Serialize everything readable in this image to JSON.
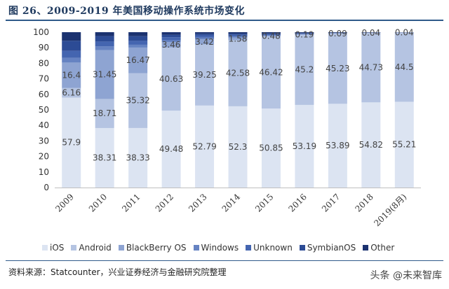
{
  "figure_title": "图 26、2009-2019 年美国移动操作系统市场变化",
  "source_note": "资料来源：Statcounter，兴业证券经济与金融研究院整理",
  "watermark": "头条 @未来智库",
  "chart_data": {
    "type": "bar",
    "stacked": true,
    "categories": [
      "2009",
      "2010",
      "2011",
      "2012",
      "2013",
      "2014",
      "2015",
      "2016",
      "2017",
      "2018",
      "2019(8月)"
    ],
    "ylim": [
      0,
      100
    ],
    "yticks": [
      0,
      10,
      20,
      30,
      40,
      50,
      60,
      70,
      80,
      90,
      100
    ],
    "grid": false,
    "legend_position": "bottom",
    "series": [
      {
        "name": "iOS",
        "color": "#dce4f2",
        "values": [
          57.9,
          38.31,
          38.33,
          49.48,
          52.79,
          52.3,
          50.85,
          53.19,
          53.89,
          54.82,
          55.21
        ],
        "labels": [
          "57.9",
          "38.31",
          "38.33",
          "49.48",
          "52.79",
          "52.3",
          "50.85",
          "53.19",
          "53.89",
          "54.82",
          "55.21"
        ]
      },
      {
        "name": "Android",
        "color": "#b5c4e2",
        "values": [
          6.16,
          18.71,
          35.32,
          40.63,
          39.25,
          42.58,
          46.42,
          45.2,
          45.23,
          44.73,
          44.5
        ],
        "labels": [
          "6.16",
          "18.71",
          "35.32",
          "40.63",
          "39.25",
          "42.58",
          "46.42",
          "45.2",
          "45.23",
          "44.73",
          "44.5"
        ]
      },
      {
        "name": "BlackBerry OS",
        "color": "#8ea4d2",
        "values": [
          16.4,
          31.45,
          16.47,
          3.46,
          3.42,
          1.58,
          0.48,
          0.19,
          0.09,
          0.04,
          0.04
        ],
        "labels": [
          "16.4",
          "31.45",
          "16.47",
          "3.46",
          "3.42",
          "1.58",
          "0.48",
          "0.19",
          "0.09",
          "0.04",
          "0.04"
        ]
      },
      {
        "name": "Windows",
        "color": "#6683c2",
        "values": [
          3.0,
          2.5,
          1.8,
          1.2,
          1.0,
          0.8,
          0.4,
          0.3,
          0.2,
          0.1,
          0.1
        ],
        "labels": []
      },
      {
        "name": "Unknown",
        "color": "#4465b0",
        "values": [
          4.5,
          3.0,
          2.5,
          2.0,
          1.5,
          1.0,
          0.6,
          0.3,
          0.2,
          0.1,
          0.05
        ],
        "labels": []
      },
      {
        "name": "SymbianOS",
        "color": "#2c4b95",
        "values": [
          6.5,
          3.5,
          3.0,
          1.5,
          1.0,
          0.8,
          0.4,
          0.2,
          0.1,
          0.05,
          0.05
        ],
        "labels": []
      },
      {
        "name": "Other",
        "color": "#1b3270",
        "values": [
          5.54,
          2.53,
          2.58,
          1.73,
          1.04,
          0.94,
          0.85,
          0.59,
          0.28,
          0.16,
          0.05
        ],
        "labels": []
      }
    ]
  }
}
